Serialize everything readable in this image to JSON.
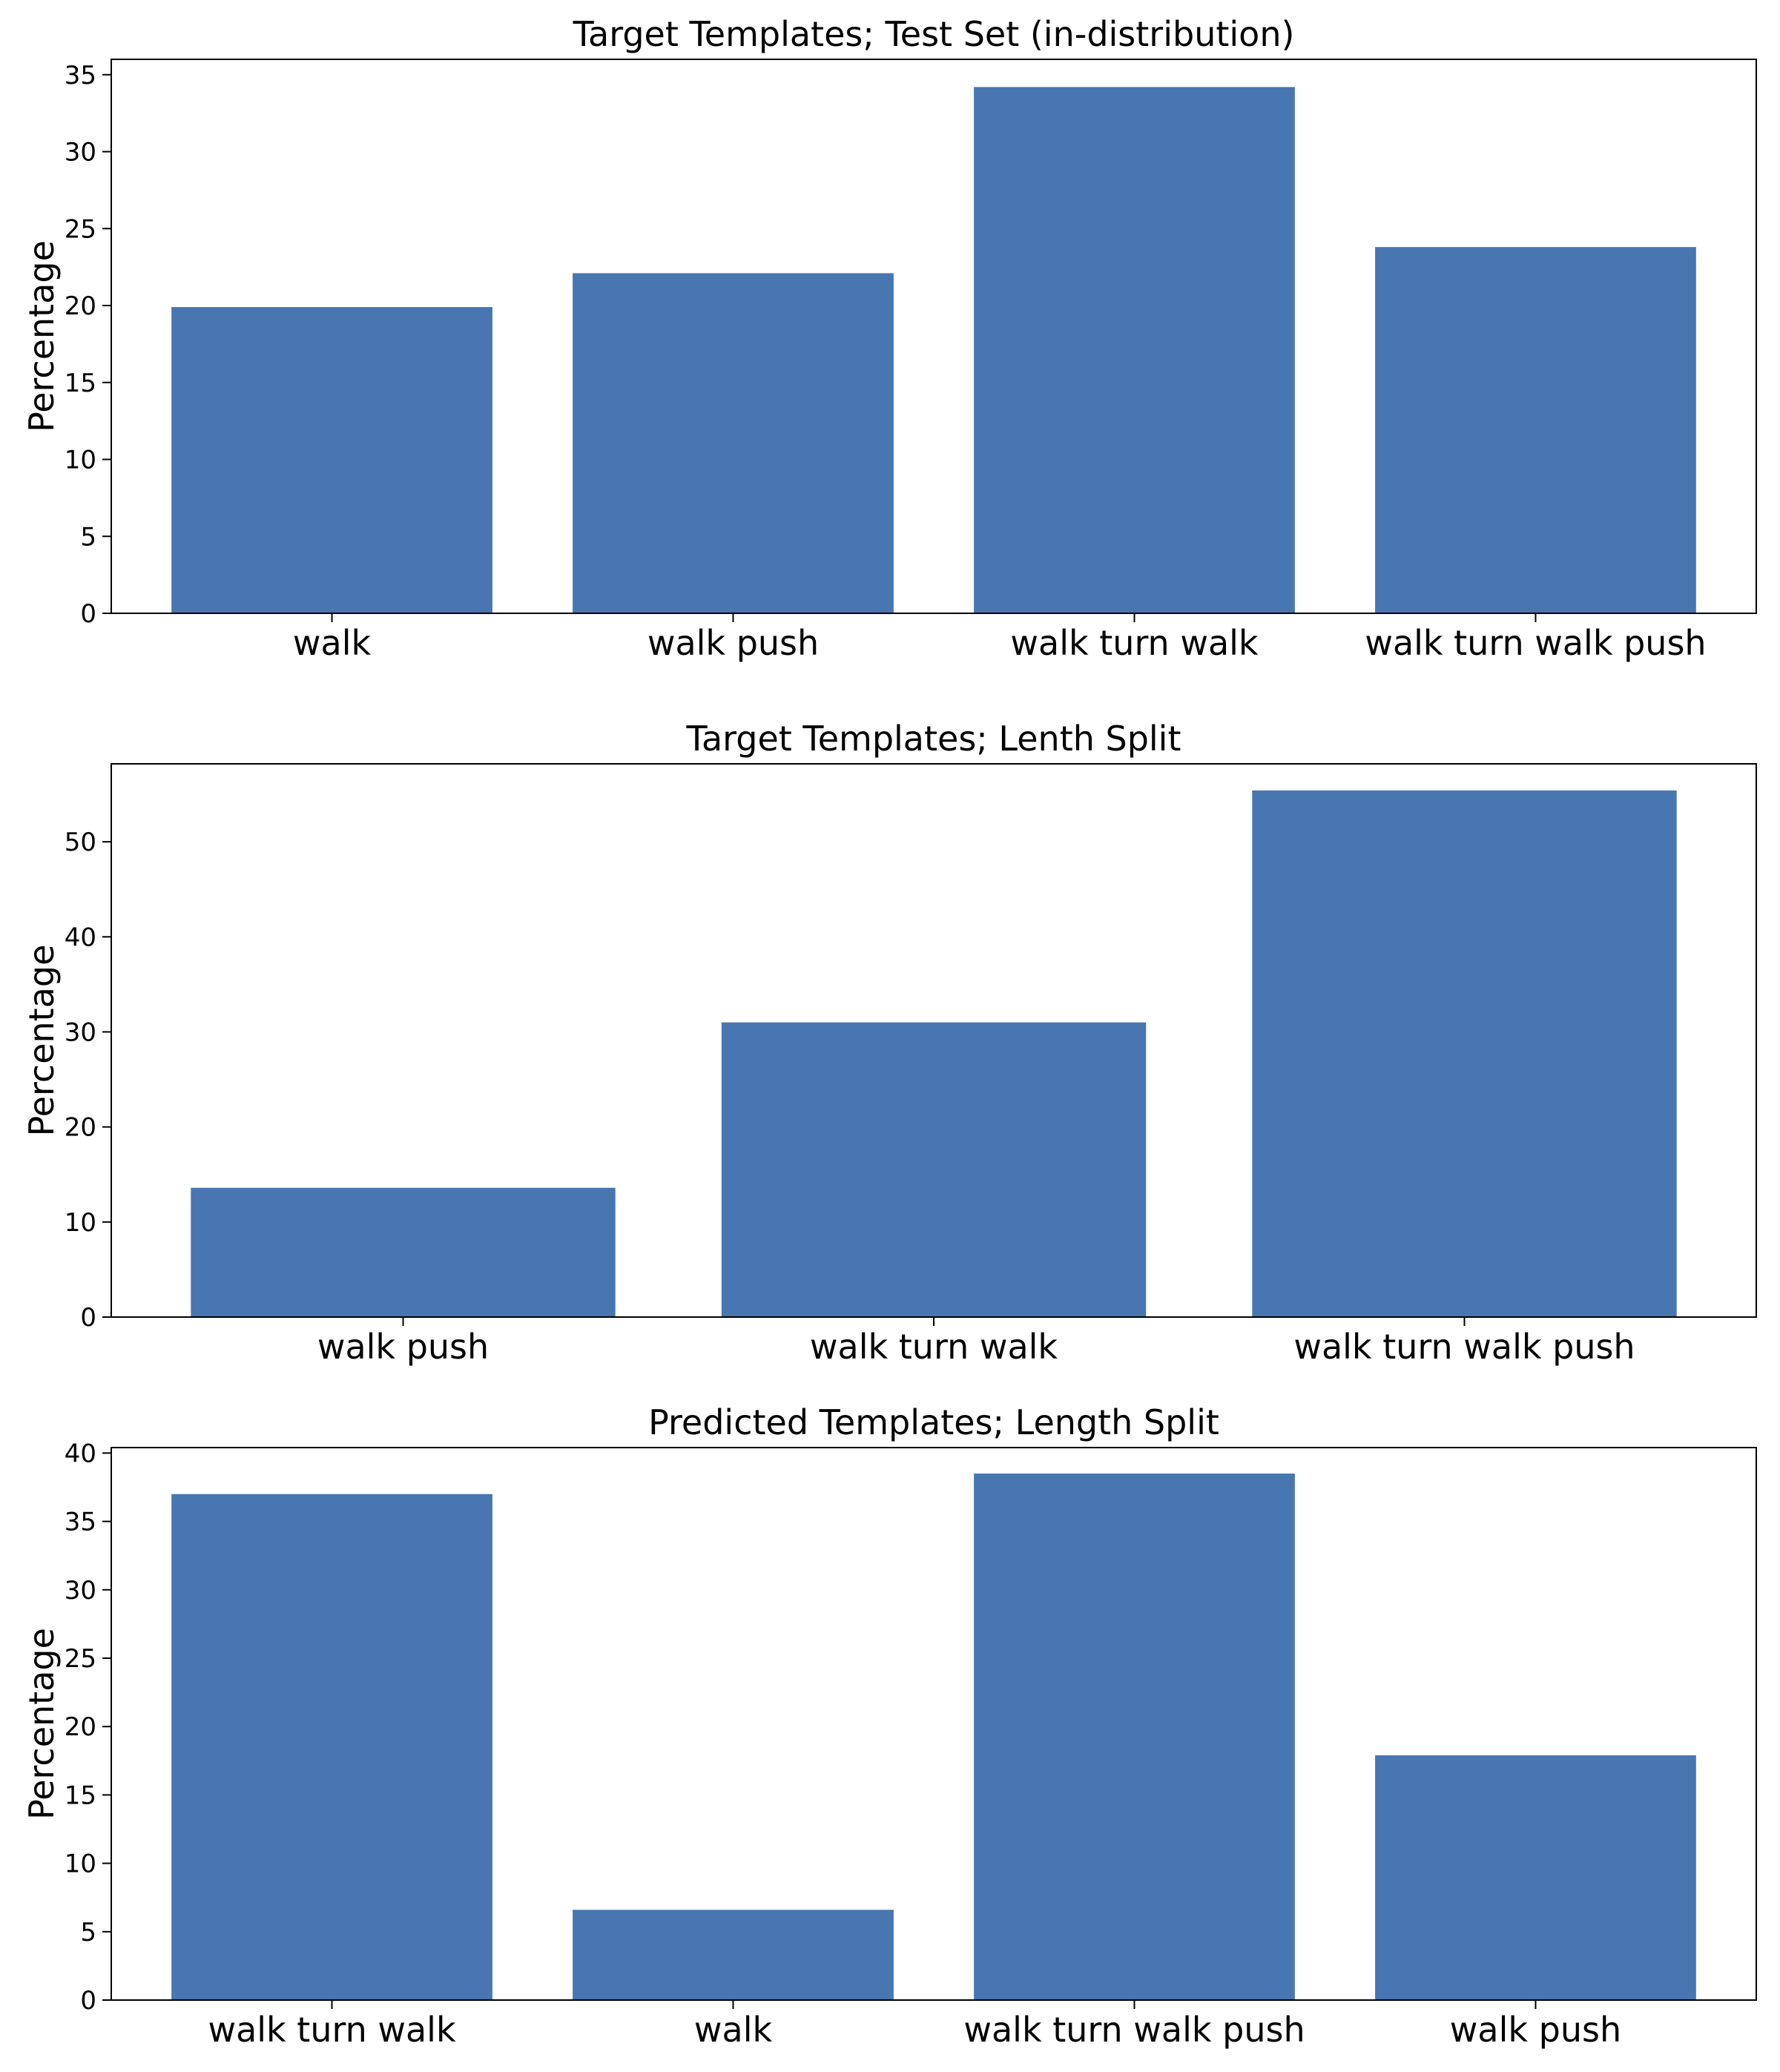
{
  "colors": {
    "bar": "#4876b0",
    "axis": "#000000",
    "background": "#ffffff"
  },
  "chart_data": [
    {
      "type": "bar",
      "title": "Target Templates; Test Set (in-distribution)",
      "xlabel": "",
      "ylabel": "Percentage",
      "categories": [
        "walk",
        "walk push",
        "walk turn walk",
        "walk turn walk push"
      ],
      "values": [
        19.9,
        22.1,
        34.2,
        23.8
      ],
      "ylim": [
        0,
        36
      ],
      "yticks": [
        0,
        5,
        10,
        15,
        20,
        25,
        30,
        35
      ],
      "grid": false
    },
    {
      "type": "bar",
      "title": "Target Templates; Lenth Split",
      "xlabel": "",
      "ylabel": "Percentage",
      "categories": [
        "walk push",
        "walk turn walk",
        "walk turn walk push"
      ],
      "values": [
        13.6,
        31.0,
        55.4
      ],
      "ylim": [
        0,
        58.2
      ],
      "yticks": [
        0,
        10,
        20,
        30,
        40,
        50
      ],
      "grid": false
    },
    {
      "type": "bar",
      "title": "Predicted Templates; Length Split",
      "xlabel": "",
      "ylabel": "Percentage",
      "categories": [
        "walk turn walk",
        "walk",
        "walk turn walk push",
        "walk push"
      ],
      "values": [
        37.0,
        6.6,
        38.5,
        17.9
      ],
      "ylim": [
        0,
        40.4
      ],
      "yticks": [
        0,
        5,
        10,
        15,
        20,
        25,
        30,
        35,
        40
      ],
      "grid": false
    }
  ]
}
